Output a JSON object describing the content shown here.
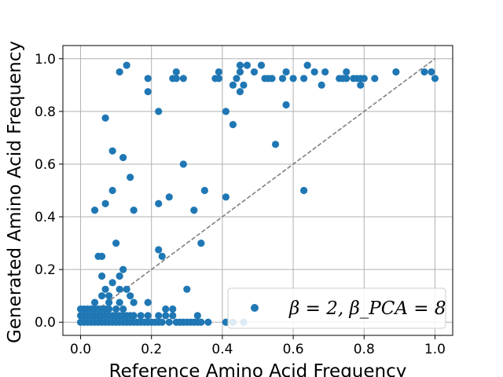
{
  "chart_data": {
    "type": "scatter",
    "xlabel": "Reference Amino Acid Frequency",
    "ylabel": "Generated Amino Acid Frequency",
    "xlim": [
      -0.05,
      1.05
    ],
    "ylim": [
      -0.05,
      1.05
    ],
    "x_ticks": [
      "0.0",
      "0.2",
      "0.4",
      "0.6",
      "0.8",
      "1.0"
    ],
    "y_ticks": [
      "0.0",
      "0.2",
      "0.4",
      "0.6",
      "0.8",
      "1.0"
    ],
    "grid": true,
    "legend_position": "lower-right",
    "reference_line": {
      "style": "dashed",
      "color": "#808080",
      "from": [
        0,
        0
      ],
      "to": [
        1,
        1
      ]
    },
    "series": [
      {
        "name": "β = 2, β_PCA = 8",
        "color": "#1f77b4",
        "points": [
          [
            0.13,
            0.975
          ],
          [
            0.11,
            0.95
          ],
          [
            0.19,
            0.925
          ],
          [
            0.19,
            0.875
          ],
          [
            0.22,
            0.8
          ],
          [
            0.26,
            0.925
          ],
          [
            0.27,
            0.925
          ],
          [
            0.27,
            0.95
          ],
          [
            0.29,
            0.925
          ],
          [
            0.38,
            0.925
          ],
          [
            0.39,
            0.925
          ],
          [
            0.39,
            0.95
          ],
          [
            0.41,
            0.8
          ],
          [
            0.43,
            0.9
          ],
          [
            0.43,
            0.75
          ],
          [
            0.44,
            0.925
          ],
          [
            0.45,
            0.95
          ],
          [
            0.45,
            0.975
          ],
          [
            0.45,
            0.875
          ],
          [
            0.46,
            0.9
          ],
          [
            0.47,
            0.975
          ],
          [
            0.49,
            0.95
          ],
          [
            0.51,
            0.975
          ],
          [
            0.52,
            0.925
          ],
          [
            0.53,
            0.925
          ],
          [
            0.54,
            0.925
          ],
          [
            0.55,
            0.675
          ],
          [
            0.57,
            0.925
          ],
          [
            0.58,
            0.95
          ],
          [
            0.58,
            0.825
          ],
          [
            0.6,
            0.925
          ],
          [
            0.63,
            0.925
          ],
          [
            0.64,
            0.975
          ],
          [
            0.66,
            0.95
          ],
          [
            0.68,
            0.9
          ],
          [
            0.69,
            0.95
          ],
          [
            0.73,
            0.925
          ],
          [
            0.74,
            0.925
          ],
          [
            0.75,
            0.95
          ],
          [
            0.75,
            0.925
          ],
          [
            0.77,
            0.925
          ],
          [
            0.78,
            0.925
          ],
          [
            0.79,
            0.9
          ],
          [
            0.79,
            0.925
          ],
          [
            0.8,
            0.925
          ],
          [
            0.83,
            0.925
          ],
          [
            0.89,
            0.95
          ],
          [
            0.97,
            0.95
          ],
          [
            0.99,
            0.95
          ],
          [
            1.0,
            0.925
          ],
          [
            0.07,
            0.775
          ],
          [
            0.09,
            0.65
          ],
          [
            0.12,
            0.625
          ],
          [
            0.14,
            0.55
          ],
          [
            0.09,
            0.5
          ],
          [
            0.07,
            0.45
          ],
          [
            0.04,
            0.425
          ],
          [
            0.15,
            0.425
          ],
          [
            0.22,
            0.45
          ],
          [
            0.25,
            0.475
          ],
          [
            0.29,
            0.6
          ],
          [
            0.32,
            0.425
          ],
          [
            0.35,
            0.5
          ],
          [
            0.41,
            0.475
          ],
          [
            0.63,
            0.5
          ],
          [
            0.34,
            0.3
          ],
          [
            0.1,
            0.3
          ],
          [
            0.22,
            0.275
          ],
          [
            0.23,
            0.25
          ],
          [
            0.05,
            0.25
          ],
          [
            0.06,
            0.25
          ],
          [
            0.12,
            0.2
          ],
          [
            0.06,
            0.175
          ],
          [
            0.11,
            0.175
          ],
          [
            0.3,
            0.125
          ],
          [
            0.09,
            0.15
          ],
          [
            0.07,
            0.125
          ],
          [
            0.11,
            0.125
          ],
          [
            0.13,
            0.125
          ],
          [
            0.14,
            0.1
          ],
          [
            0.03,
            0.05
          ],
          [
            0.04,
            0.075
          ],
          [
            0.06,
            0.1
          ],
          [
            0.08,
            0.075
          ],
          [
            0.11,
            0.075
          ],
          [
            0.15,
            0.075
          ],
          [
            0.19,
            0.075
          ],
          [
            0.24,
            0.05
          ],
          [
            0.26,
            0.05
          ],
          [
            0.08,
            0.1
          ],
          [
            0.0,
            0.05
          ],
          [
            0.0,
            0.025
          ],
          [
            0.0,
            0.0
          ],
          [
            0.01,
            0.05
          ],
          [
            0.01,
            0.025
          ],
          [
            0.02,
            0.05
          ],
          [
            0.02,
            0.025
          ],
          [
            0.02,
            0.0
          ],
          [
            0.03,
            0.025
          ],
          [
            0.03,
            0.0
          ],
          [
            0.04,
            0.05
          ],
          [
            0.04,
            0.025
          ],
          [
            0.04,
            0.0
          ],
          [
            0.05,
            0.05
          ],
          [
            0.05,
            0.025
          ],
          [
            0.05,
            0.0
          ],
          [
            0.06,
            0.05
          ],
          [
            0.06,
            0.025
          ],
          [
            0.06,
            0.0
          ],
          [
            0.07,
            0.05
          ],
          [
            0.07,
            0.025
          ],
          [
            0.07,
            0.0
          ],
          [
            0.08,
            0.05
          ],
          [
            0.08,
            0.025
          ],
          [
            0.08,
            0.0
          ],
          [
            0.09,
            0.025
          ],
          [
            0.09,
            0.0
          ],
          [
            0.1,
            0.05
          ],
          [
            0.1,
            0.025
          ],
          [
            0.1,
            0.0
          ],
          [
            0.11,
            0.025
          ],
          [
            0.11,
            0.0
          ],
          [
            0.12,
            0.025
          ],
          [
            0.12,
            0.0
          ],
          [
            0.13,
            0.025
          ],
          [
            0.13,
            0.0
          ],
          [
            0.14,
            0.025
          ],
          [
            0.14,
            0.0
          ],
          [
            0.15,
            0.025
          ],
          [
            0.15,
            0.0
          ],
          [
            0.16,
            0.0
          ],
          [
            0.17,
            0.025
          ],
          [
            0.17,
            0.0
          ],
          [
            0.18,
            0.0
          ],
          [
            0.19,
            0.025
          ],
          [
            0.19,
            0.0
          ],
          [
            0.2,
            0.0
          ],
          [
            0.21,
            0.0
          ],
          [
            0.22,
            0.025
          ],
          [
            0.22,
            0.0
          ],
          [
            0.23,
            0.0
          ],
          [
            0.24,
            0.025
          ],
          [
            0.25,
            0.0
          ],
          [
            0.26,
            0.025
          ],
          [
            0.27,
            0.0
          ],
          [
            0.28,
            0.0
          ],
          [
            0.29,
            0.0
          ],
          [
            0.3,
            0.0
          ],
          [
            0.31,
            0.0
          ],
          [
            0.32,
            0.0
          ],
          [
            0.33,
            0.025
          ],
          [
            0.33,
            0.0
          ],
          [
            0.34,
            0.0
          ],
          [
            0.36,
            0.0
          ],
          [
            0.41,
            0.0
          ],
          [
            0.43,
            0.0
          ],
          [
            0.46,
            0.0
          ],
          [
            0.01,
            0.0
          ],
          [
            0.03,
            0.05
          ],
          [
            0.12,
            0.05
          ]
        ]
      }
    ]
  }
}
